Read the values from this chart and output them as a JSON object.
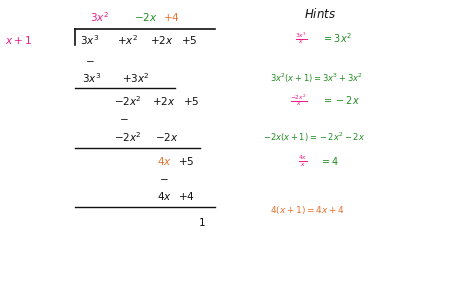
{
  "figsize": [
    4.74,
    2.86
  ],
  "dpi": 100,
  "bg_color": "#ffffff",
  "pink": "#e91e8c",
  "green": "#228B22",
  "orange": "#e8722e",
  "black": "#111111"
}
